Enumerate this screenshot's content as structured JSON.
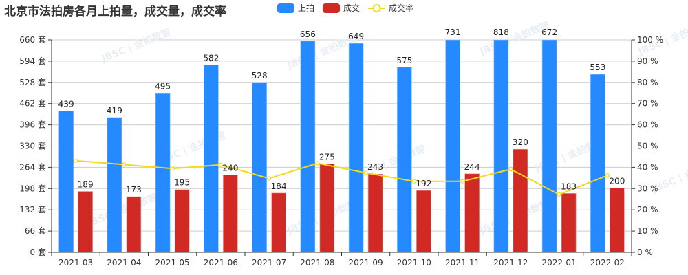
{
  "title": "北京市法拍房各月上拍量，成交量，成交率",
  "legend": [
    {
      "label": "上拍",
      "color": "#2589ff",
      "type": "bar"
    },
    {
      "label": "成交",
      "color": "#d12a24",
      "type": "bar"
    },
    {
      "label": "成交率",
      "color": "#f2d91a",
      "type": "line"
    }
  ],
  "colors": {
    "auction": "#2589ff",
    "deal": "#d12a24",
    "rate": "#f2d91a",
    "grid": "#cccccc",
    "axis": "#333333",
    "text": "#333333"
  },
  "chart_data": {
    "type": "bar",
    "title": "北京市法拍房各月上拍量，成交量，成交率",
    "categories": [
      "2021-03",
      "2021-04",
      "2021-05",
      "2021-06",
      "2021-07",
      "2021-08",
      "2021-09",
      "2021-10",
      "2021-11",
      "2021-12",
      "2022-01",
      "2022-02"
    ],
    "series": [
      {
        "name": "上拍",
        "type": "bar",
        "axis": "left",
        "values": [
          439,
          419,
          495,
          582,
          528,
          656,
          649,
          575,
          731,
          818,
          672,
          553
        ]
      },
      {
        "name": "成交",
        "type": "bar",
        "axis": "left",
        "values": [
          189,
          173,
          195,
          240,
          184,
          275,
          243,
          192,
          244,
          320,
          183,
          200
        ]
      },
      {
        "name": "成交率",
        "type": "line",
        "axis": "right",
        "unit": "%",
        "values": [
          43.1,
          41.3,
          39.4,
          41.2,
          34.8,
          41.9,
          37.4,
          33.4,
          33.4,
          39.1,
          27.2,
          36.2
        ]
      }
    ],
    "y_left": {
      "ticks": [
        0,
        66,
        132,
        198,
        264,
        330,
        396,
        462,
        528,
        594,
        660
      ],
      "suffix": " 套",
      "ylim": [
        0,
        660
      ]
    },
    "y_right": {
      "ticks": [
        0,
        10,
        20,
        30,
        40,
        50,
        60,
        70,
        80,
        90,
        100
      ],
      "suffix": " %",
      "ylim": [
        0,
        100
      ]
    },
    "xlabel": "",
    "ylabel": "",
    "grid": true,
    "legend_position": "top"
  }
}
